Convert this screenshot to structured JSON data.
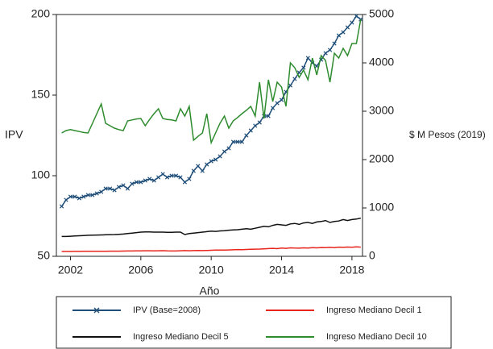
{
  "chart_data": {
    "type": "line",
    "x_label": "Año",
    "y_label": "IPV",
    "y2_label": "$ M Pesos (2019)",
    "x": [
      2001.5,
      2001.75,
      2002,
      2002.25,
      2002.5,
      2002.75,
      2003,
      2003.25,
      2003.5,
      2003.75,
      2004,
      2004.25,
      2004.5,
      2004.75,
      2005,
      2005.25,
      2005.5,
      2005.75,
      2006,
      2006.25,
      2006.5,
      2006.75,
      2007,
      2007.25,
      2007.5,
      2007.75,
      2008,
      2008.25,
      2008.5,
      2008.75,
      2009,
      2009.25,
      2009.5,
      2009.75,
      2010,
      2010.25,
      2010.5,
      2010.75,
      2011,
      2011.25,
      2011.5,
      2011.75,
      2012,
      2012.25,
      2012.5,
      2012.75,
      2013,
      2013.25,
      2013.5,
      2013.75,
      2014,
      2014.25,
      2014.5,
      2014.75,
      2015,
      2015.25,
      2015.5,
      2015.75,
      2016,
      2016.25,
      2016.5,
      2016.75,
      2017,
      2017.25,
      2017.5,
      2017.75,
      2018,
      2018.25,
      2018.5
    ],
    "xlim": [
      2001.2,
      2018.6
    ],
    "xticks": [
      2002,
      2006,
      2010,
      2014,
      2018
    ],
    "ylim": [
      50,
      200
    ],
    "yticks": [
      50,
      100,
      150,
      200
    ],
    "y2lim": [
      0,
      5000
    ],
    "y2ticks": [
      0,
      1000,
      2000,
      3000,
      4000,
      5000
    ],
    "series": [
      {
        "name": "IPV (Base=2008)",
        "color": "#1f4e79",
        "marker": "x",
        "values": [
          81,
          85,
          87,
          87,
          86,
          87,
          88,
          88,
          89,
          90,
          92,
          92,
          91,
          93,
          94,
          92,
          95,
          96,
          96,
          97,
          98,
          97,
          99,
          101,
          99,
          100,
          100,
          99,
          96,
          98,
          103,
          106,
          103,
          107,
          109,
          110,
          112,
          115,
          117,
          121,
          121,
          121,
          125,
          128,
          131,
          133,
          137,
          137,
          142,
          145,
          147,
          152,
          156,
          160,
          164,
          167,
          173,
          170,
          168,
          172,
          176,
          178,
          182,
          187,
          189,
          192,
          195,
          199,
          197
        ]
      },
      {
        "name": "Ingreso Mediano Decil 1",
        "color": "#e8261d",
        "axis": "y2",
        "values": [
          100,
          100,
          100,
          102,
          102,
          103,
          103,
          104,
          104,
          105,
          105,
          106,
          106,
          107,
          108,
          110,
          110,
          111,
          112,
          115,
          115,
          114,
          115,
          116,
          112,
          110,
          110,
          115,
          118,
          115,
          118,
          120,
          118,
          122,
          125,
          128,
          130,
          128,
          132,
          135,
          140,
          138,
          142,
          145,
          148,
          150,
          155,
          160,
          165,
          158,
          170,
          165,
          175,
          170,
          168,
          175,
          172,
          180,
          175,
          182,
          178,
          185,
          180,
          190,
          185,
          192,
          188,
          195,
          190
        ]
      },
      {
        "name": "Ingreso Mediano Decil 5",
        "color": "#111111",
        "axis": "y2",
        "values": [
          410,
          410,
          415,
          420,
          425,
          430,
          435,
          438,
          440,
          442,
          445,
          448,
          450,
          455,
          460,
          470,
          480,
          490,
          500,
          505,
          505,
          500,
          500,
          500,
          495,
          495,
          500,
          500,
          450,
          470,
          480,
          490,
          500,
          510,
          520,
          515,
          525,
          530,
          540,
          545,
          550,
          560,
          570,
          560,
          580,
          600,
          620,
          610,
          640,
          660,
          650,
          640,
          670,
          680,
          660,
          690,
          700,
          680,
          710,
          720,
          740,
          700,
          720,
          730,
          760,
          740,
          760,
          770,
          790
        ]
      },
      {
        "name": "Ingreso Mediano Decil 10",
        "color": "#2e8b2e",
        "axis": "y2",
        "values": [
          2550,
          2600,
          2620,
          2600,
          2580,
          2560,
          2550,
          2750,
          2950,
          3150,
          2750,
          2700,
          2650,
          2620,
          2600,
          2800,
          2820,
          2840,
          2850,
          2700,
          2830,
          2950,
          3050,
          2850,
          2830,
          2820,
          2800,
          3050,
          2900,
          3100,
          2400,
          2480,
          2550,
          2950,
          2350,
          2550,
          2750,
          2900,
          2650,
          2800,
          2870,
          2950,
          3020,
          3100,
          2900,
          3600,
          2850,
          3650,
          3200,
          3600,
          3500,
          3100,
          4000,
          3900,
          3700,
          3850,
          3650,
          4100,
          3750,
          4150,
          4050,
          3600,
          4200,
          4100,
          4300,
          4150,
          4400,
          4400,
          4900
        ]
      }
    ]
  }
}
